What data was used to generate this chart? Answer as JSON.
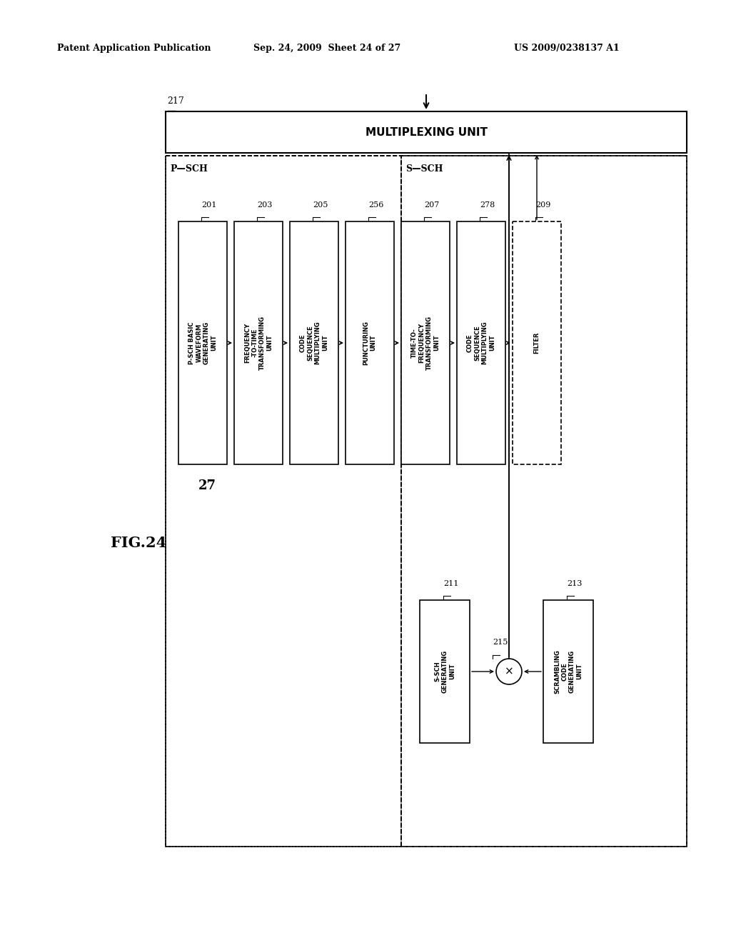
{
  "bg_color": "#ffffff",
  "header_left": "Patent Application Publication",
  "header_mid": "Sep. 24, 2009  Sheet 24 of 27",
  "header_right": "US 2009/0238137 A1",
  "fig_label": "FIG.24",
  "label_27": "27",
  "mux_label": "217",
  "mux_text": "MULTIPLEXING UNIT",
  "psch_label": "P—SCH",
  "ssch_label": "S—SCH",
  "psch_blocks": [
    {
      "label": "201",
      "text": "P-SCH BASIC\nWAVEFORM\nGENERATING\nUNIT",
      "dashed": false
    },
    {
      "label": "203",
      "text": "FREQUENCY\n-TO-TIME\nTRANSFORMING\nUNIT",
      "dashed": false
    },
    {
      "label": "205",
      "text": "CODE\nSEQUENCE\nMULTIPLYING\nUNIT",
      "dashed": false
    },
    {
      "label": "256",
      "text": "PUNCTURING\nUNIT",
      "dashed": false
    },
    {
      "label": "207",
      "text": "TIME-TO-\nFREQUENCY\nTRANSFORMING\nUNIT",
      "dashed": false
    },
    {
      "label": "278",
      "text": "CODE\nSEQUENCE\nMULTIPLYING\nUNIT",
      "dashed": false
    },
    {
      "label": "209",
      "text": "FILTER",
      "dashed": true
    }
  ],
  "ssch_gen_label": "211",
  "ssch_gen_text": "S-SCH\nGENERATING\nUNIT",
  "scramble_label": "213",
  "scramble_text": "SCRAMBLING\nCODE\nGENERATING\nUNIT",
  "mult_label": "215"
}
